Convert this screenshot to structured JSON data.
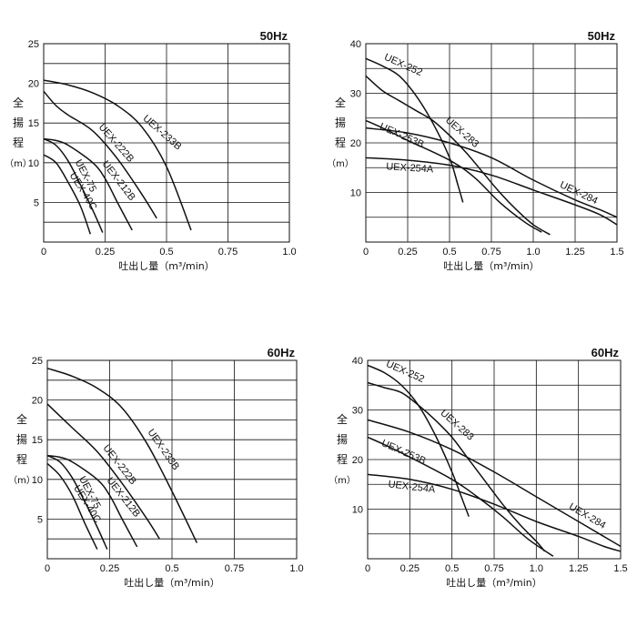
{
  "chart_data": [
    {
      "type": "line",
      "title": "50Hz",
      "xlabel": "吐出し量（m³/min）",
      "ylabel": [
        "全",
        "揚",
        "程",
        "（m）"
      ],
      "xlim": [
        0,
        1.0
      ],
      "ylim": [
        0,
        25
      ],
      "xticks": [
        "0",
        "0.25",
        "0.5",
        "0.75",
        "1.0"
      ],
      "yticks": [
        "5",
        "10",
        "15",
        "20",
        "25"
      ],
      "grid": true,
      "series": [
        {
          "name": "UEX-233B",
          "points": [
            [
              0,
              20.4
            ],
            [
              0.1,
              19.8
            ],
            [
              0.2,
              18.8
            ],
            [
              0.3,
              17.2
            ],
            [
              0.4,
              14.5
            ],
            [
              0.5,
              9.5
            ],
            [
              0.6,
              1.5
            ]
          ]
        },
        {
          "name": "UEX-222B",
          "points": [
            [
              0,
              19.0
            ],
            [
              0.05,
              17.2
            ],
            [
              0.1,
              16.0
            ],
            [
              0.2,
              14.0
            ],
            [
              0.3,
              10.5
            ],
            [
              0.4,
              6.0
            ],
            [
              0.46,
              3.0
            ]
          ]
        },
        {
          "name": "UEX-212B",
          "points": [
            [
              0,
              13.0
            ],
            [
              0.05,
              12.8
            ],
            [
              0.1,
              12.2
            ],
            [
              0.2,
              10.0
            ],
            [
              0.25,
              8.0
            ],
            [
              0.3,
              5.0
            ],
            [
              0.36,
              1.5
            ]
          ]
        },
        {
          "name": "UEX-75",
          "points": [
            [
              0,
              13.0
            ],
            [
              0.05,
              12.2
            ],
            [
              0.1,
              10.2
            ],
            [
              0.15,
              7.2
            ],
            [
              0.2,
              4.0
            ],
            [
              0.24,
              1.2
            ]
          ]
        },
        {
          "name": "UEX-40C",
          "points": [
            [
              0,
              11.0
            ],
            [
              0.05,
              10.0
            ],
            [
              0.1,
              7.5
            ],
            [
              0.15,
              4.5
            ],
            [
              0.19,
              1.0
            ]
          ]
        }
      ]
    },
    {
      "type": "line",
      "title": "50Hz",
      "xlabel": "吐出し量（m³/min）",
      "ylabel": [
        "全",
        "揚",
        "程",
        "（m）"
      ],
      "xlim": [
        0,
        1.5
      ],
      "ylim": [
        0,
        40
      ],
      "xticks": [
        "0",
        "0.25",
        "0.5",
        "0.75",
        "1.0",
        "1.25",
        "1.5"
      ],
      "yticks": [
        "10",
        "20",
        "30",
        "40"
      ],
      "grid": true,
      "series": [
        {
          "name": "UEX-252",
          "points": [
            [
              0,
              37.0
            ],
            [
              0.1,
              35.5
            ],
            [
              0.2,
              33.5
            ],
            [
              0.3,
              29.5
            ],
            [
              0.4,
              24.0
            ],
            [
              0.5,
              17.0
            ],
            [
              0.55,
              11.5
            ],
            [
              0.58,
              8.0
            ]
          ]
        },
        {
          "name": "UEX-283",
          "points": [
            [
              0,
              33.5
            ],
            [
              0.1,
              30.5
            ],
            [
              0.2,
              28.5
            ],
            [
              0.3,
              26.5
            ],
            [
              0.4,
              24.5
            ],
            [
              0.5,
              21.5
            ],
            [
              0.6,
              18.0
            ],
            [
              0.7,
              14.0
            ],
            [
              0.8,
              10.0
            ],
            [
              0.9,
              6.5
            ],
            [
              1.0,
              3.5
            ],
            [
              1.1,
              1.5
            ]
          ]
        },
        {
          "name": "UEX-284",
          "points": [
            [
              0,
              23.0
            ],
            [
              0.25,
              22.0
            ],
            [
              0.5,
              20.0
            ],
            [
              0.75,
              17.0
            ],
            [
              1.0,
              12.5
            ],
            [
              1.25,
              8.5
            ],
            [
              1.4,
              6.5
            ],
            [
              1.5,
              5.0
            ]
          ]
        },
        {
          "name": "UEX-253B",
          "points": [
            [
              0,
              24.5
            ],
            [
              0.1,
              23.0
            ],
            [
              0.25,
              20.5
            ],
            [
              0.5,
              16.5
            ],
            [
              0.65,
              13.0
            ],
            [
              0.8,
              8.0
            ],
            [
              0.95,
              4.0
            ],
            [
              1.05,
              2.0
            ]
          ]
        },
        {
          "name": "UEX-254A",
          "points": [
            [
              0,
              17.0
            ],
            [
              0.25,
              16.5
            ],
            [
              0.5,
              15.5
            ],
            [
              0.75,
              13.5
            ],
            [
              1.0,
              10.5
            ],
            [
              1.25,
              7.5
            ],
            [
              1.4,
              5.5
            ],
            [
              1.5,
              3.5
            ]
          ]
        }
      ]
    },
    {
      "type": "line",
      "title": "60Hz",
      "xlabel": "吐出し量（m³/min）",
      "ylabel": [
        "全",
        "揚",
        "程",
        "（m）"
      ],
      "xlim": [
        0,
        1.0
      ],
      "ylim": [
        0,
        25
      ],
      "xticks": [
        "0",
        "0.25",
        "0.5",
        "0.75",
        "1.0"
      ],
      "yticks": [
        "5",
        "10",
        "15",
        "20",
        "25"
      ],
      "grid": true,
      "series": [
        {
          "name": "UEX-233B",
          "points": [
            [
              0,
              24.0
            ],
            [
              0.1,
              23.0
            ],
            [
              0.2,
              21.5
            ],
            [
              0.3,
              19.0
            ],
            [
              0.4,
              14.5
            ],
            [
              0.5,
              8.5
            ],
            [
              0.6,
              2.0
            ]
          ]
        },
        {
          "name": "UEX-222B",
          "points": [
            [
              0,
              19.5
            ],
            [
              0.05,
              18.0
            ],
            [
              0.1,
              16.5
            ],
            [
              0.2,
              13.5
            ],
            [
              0.3,
              9.5
            ],
            [
              0.4,
              5.0
            ],
            [
              0.45,
              2.5
            ]
          ]
        },
        {
          "name": "UEX-212B",
          "points": [
            [
              0,
              13.0
            ],
            [
              0.05,
              12.8
            ],
            [
              0.1,
              12.2
            ],
            [
              0.2,
              10.0
            ],
            [
              0.25,
              8.0
            ],
            [
              0.3,
              5.0
            ],
            [
              0.36,
              1.5
            ]
          ]
        },
        {
          "name": "UEX-75",
          "points": [
            [
              0,
              13.0
            ],
            [
              0.05,
              12.2
            ],
            [
              0.1,
              10.2
            ],
            [
              0.15,
              7.2
            ],
            [
              0.2,
              4.0
            ],
            [
              0.24,
              1.2
            ]
          ]
        },
        {
          "name": "UEX-40C",
          "points": [
            [
              0,
              12.0
            ],
            [
              0.05,
              10.5
            ],
            [
              0.1,
              8.0
            ],
            [
              0.15,
              4.5
            ],
            [
              0.2,
              1.2
            ]
          ]
        }
      ]
    },
    {
      "type": "line",
      "title": "60Hz",
      "xlabel": "吐出し量（m³/min）",
      "ylabel": [
        "全",
        "揚",
        "程",
        "（m）"
      ],
      "xlim": [
        0,
        1.5
      ],
      "ylim": [
        0,
        40
      ],
      "xticks": [
        "0",
        "0.25",
        "0.5",
        "0.75",
        "1.0",
        "1.25",
        "1.5"
      ],
      "yticks": [
        "10",
        "20",
        "30",
        "40"
      ],
      "grid": true,
      "series": [
        {
          "name": "UEX-252",
          "points": [
            [
              0,
              39.0
            ],
            [
              0.1,
              37.5
            ],
            [
              0.2,
              35.0
            ],
            [
              0.3,
              31.0
            ],
            [
              0.4,
              25.0
            ],
            [
              0.5,
              17.5
            ],
            [
              0.55,
              13.0
            ],
            [
              0.6,
              8.5
            ]
          ]
        },
        {
          "name": "UEX-283",
          "points": [
            [
              0,
              35.5
            ],
            [
              0.1,
              34.5
            ],
            [
              0.2,
              33.5
            ],
            [
              0.3,
              31.0
            ],
            [
              0.4,
              28.0
            ],
            [
              0.5,
              24.5
            ],
            [
              0.6,
              20.0
            ],
            [
              0.7,
              15.5
            ],
            [
              0.8,
              11.0
            ],
            [
              0.9,
              7.0
            ],
            [
              1.0,
              3.5
            ],
            [
              1.05,
              1.5
            ]
          ]
        },
        {
          "name": "UEX-284",
          "points": [
            [
              0,
              28.0
            ],
            [
              0.25,
              25.5
            ],
            [
              0.5,
              22.0
            ],
            [
              0.75,
              17.5
            ],
            [
              1.0,
              12.5
            ],
            [
              1.25,
              7.5
            ],
            [
              1.4,
              4.5
            ],
            [
              1.5,
              2.5
            ]
          ]
        },
        {
          "name": "UEX-253B",
          "points": [
            [
              0,
              24.5
            ],
            [
              0.1,
              23.0
            ],
            [
              0.25,
              20.5
            ],
            [
              0.5,
              16.0
            ],
            [
              0.65,
              12.5
            ],
            [
              0.8,
              8.5
            ],
            [
              0.95,
              4.0
            ],
            [
              1.1,
              0.5
            ]
          ]
        },
        {
          "name": "UEX-254A",
          "points": [
            [
              0,
              17.0
            ],
            [
              0.25,
              16.0
            ],
            [
              0.5,
              14.0
            ],
            [
              0.75,
              11.0
            ],
            [
              1.0,
              7.5
            ],
            [
              1.25,
              4.5
            ],
            [
              1.4,
              2.5
            ],
            [
              1.5,
              1.5
            ]
          ]
        }
      ]
    }
  ]
}
